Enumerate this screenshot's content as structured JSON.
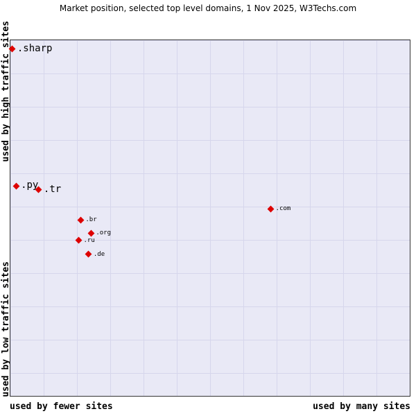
{
  "chart_data": {
    "type": "scatter",
    "title": "Market position, selected top level domains, 1 Nov 2025, W3Techs.com",
    "x_axis": {
      "left_label": "used by fewer sites",
      "right_label": "used by many sites",
      "range": [
        0,
        100
      ],
      "scale": "qualitative (relative market share)"
    },
    "y_axis": {
      "top_label": "used by high traffic sites",
      "bottom_label": "used by low traffic sites",
      "range": [
        0,
        100
      ],
      "scale": "qualitative (relative traffic rank)"
    },
    "grid": true,
    "legend": "none",
    "marker": {
      "shape": "diamond",
      "color": "#dd0000"
    },
    "colors": {
      "plot_background": "#e9e9f6",
      "grid_line": "#d6d6ec",
      "border": "#333333",
      "text": "#000000"
    },
    "points": [
      {
        "label": ".sharp",
        "x": 0.5,
        "y": 97.5,
        "label_size": "large"
      },
      {
        "label": ".py",
        "x": 1.4,
        "y": 59.0,
        "label_size": "large"
      },
      {
        "label": ".tr",
        "x": 7.1,
        "y": 57.9,
        "label_size": "large"
      },
      {
        "label": ".com",
        "x": 65.2,
        "y": 52.6,
        "label_size": "small"
      },
      {
        "label": ".br",
        "x": 17.6,
        "y": 49.5,
        "label_size": "small"
      },
      {
        "label": ".org",
        "x": 20.2,
        "y": 45.8,
        "label_size": "small"
      },
      {
        "label": ".ru",
        "x": 17.1,
        "y": 43.7,
        "label_size": "small"
      },
      {
        "label": ".de",
        "x": 19.6,
        "y": 39.8,
        "label_size": "small"
      }
    ]
  }
}
